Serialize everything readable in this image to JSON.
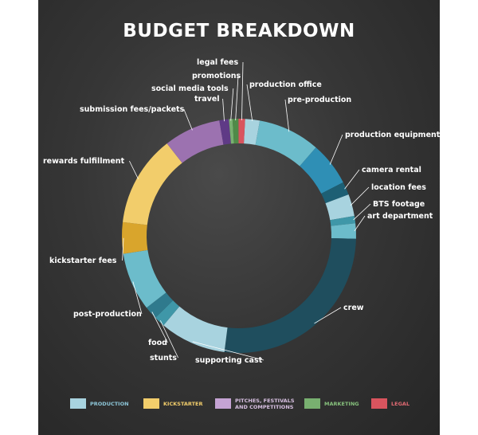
{
  "chart_data": {
    "type": "pie",
    "donut": true,
    "title": "BUDGET BREAKDOWN",
    "categories": [
      "production office",
      "pre-production",
      "production equipment",
      "camera rental",
      "location fees",
      "BTS footage",
      "art department",
      "crew",
      "supporting cast",
      "stunts",
      "food",
      "post-production",
      "kickstarter fees",
      "rewards fulfillment",
      "submission fees/packets",
      "travel",
      "social media tools",
      "promotions",
      "legal fees"
    ],
    "values": [
      2.0,
      8.5,
      6.0,
      1.8,
      3.0,
      1.0,
      2.1,
      26.4,
      9.1,
      1.5,
      1.8,
      8.0,
      4.3,
      12.5,
      7.8,
      1.3,
      0.5,
      0.8,
      0.9
    ],
    "groups": [
      "PRODUCTION",
      "PRODUCTION",
      "PRODUCTION",
      "PRODUCTION",
      "PRODUCTION",
      "PRODUCTION",
      "PRODUCTION",
      "PRODUCTION",
      "PRODUCTION",
      "PRODUCTION",
      "PRODUCTION",
      "PRODUCTION",
      "KICKSTARTER",
      "KICKSTARTER",
      "PITCHES, FESTIVALS AND COMPETITIONS",
      "PITCHES, FESTIVALS AND COMPETITIONS",
      "MARKETING",
      "MARKETING",
      "LEGAL"
    ],
    "colors": [
      "#a8d3df",
      "#6cbccb",
      "#2f8fb5",
      "#1d5f74",
      "#a8d3df",
      "#3f97a8",
      "#6cbccb",
      "#1f4e5e",
      "#a8d3df",
      "#3f97a8",
      "#2f7a8d",
      "#6cbccb",
      "#d9a52c",
      "#f2cd6b",
      "#9c72b0",
      "#5f3a86",
      "#78b070",
      "#4f8a48",
      "#d9545e"
    ],
    "legend": {
      "position": "bottom",
      "items": [
        {
          "label": "PRODUCTION",
          "color": "#a8d3df",
          "text_color": "#8dc6d8"
        },
        {
          "label": "KICKSTARTER",
          "color": "#f2cd6b",
          "text_color": "#f2cd6b"
        },
        {
          "label": "PITCHES, FESTIVALS AND COMPETITIONS",
          "line1": "PITCHES, FESTIVALS",
          "line2": "AND COMPETITIONS",
          "color": "#c5a3d4",
          "text_color": "#d8c0e2"
        },
        {
          "label": "MARKETING",
          "color": "#78b070",
          "text_color": "#86c07c"
        },
        {
          "label": "LEGAL",
          "color": "#d9545e",
          "text_color": "#e06a72"
        }
      ]
    }
  }
}
